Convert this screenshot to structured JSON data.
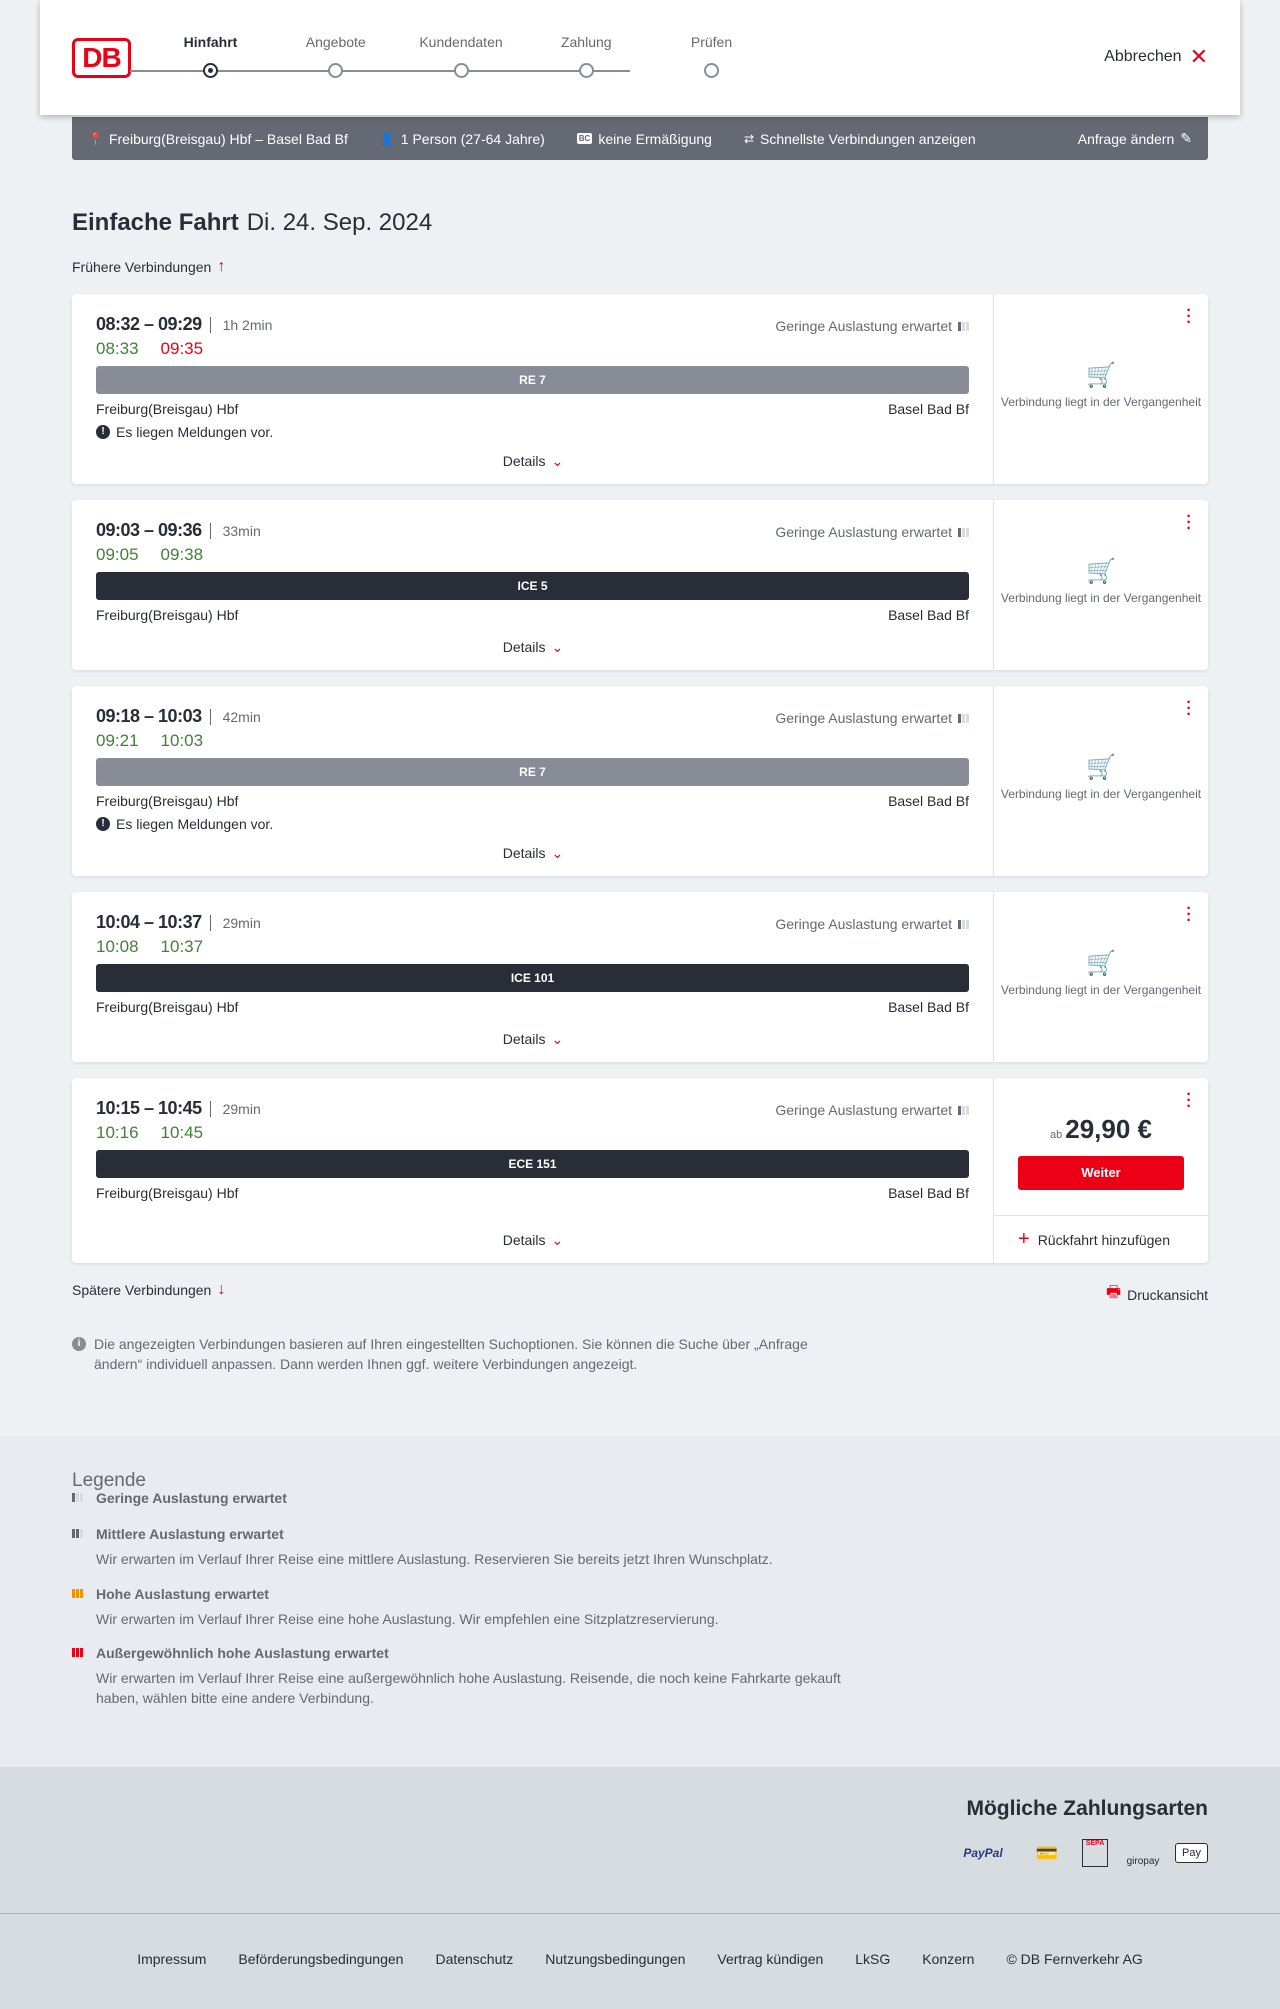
{
  "header": {
    "logo": "DB",
    "steps": [
      "Hinfahrt",
      "Angebote",
      "Kundendaten",
      "Zahlung",
      "Prüfen"
    ],
    "active_step": 0,
    "cancel": "Abbrechen"
  },
  "summary": {
    "route": "Freiburg(Breisgau) Hbf – Basel Bad Bf",
    "passengers": "1 Person (27-64 Jahre)",
    "bc_badge": "BC",
    "discount": "keine Ermäßigung",
    "option": "Schnellste Verbindungen anzeigen",
    "change": "Anfrage ändern"
  },
  "title": {
    "type": "Einfache Fahrt",
    "date": "Di. 24. Sep. 2024"
  },
  "earlier": "Frühere Verbindungen",
  "later": "Spätere Verbindungen",
  "print": "Druckansicht",
  "details_label": "Details",
  "occupancy_label": "Geringe Auslastung erwartet",
  "past_label": "Verbindung liegt in der Vergangenheit",
  "message_label": "Es liegen Meldungen vor.",
  "colors": {
    "accent": "#ec0016",
    "ontime": "#408335",
    "delay": "#ec0016",
    "regional": "#878c96",
    "longdistance": "#282d37"
  },
  "connections": [
    {
      "times": "08:32 – 09:29",
      "duration": "1h 2min",
      "rt_dep": "08:33",
      "rt_arr": "09:35",
      "rt_arr_late": true,
      "train": "RE 7",
      "regional": true,
      "from": "Freiburg(Breisgau) Hbf",
      "to": "Basel Bad Bf",
      "message": true,
      "past": true
    },
    {
      "times": "09:03 – 09:36",
      "duration": "33min",
      "rt_dep": "09:05",
      "rt_arr": "09:38",
      "rt_arr_late": false,
      "train": "ICE 5",
      "regional": false,
      "from": "Freiburg(Breisgau) Hbf",
      "to": "Basel Bad Bf",
      "message": false,
      "past": true
    },
    {
      "times": "09:18 – 10:03",
      "duration": "42min",
      "rt_dep": "09:21",
      "rt_arr": "10:03",
      "rt_arr_late": false,
      "train": "RE 7",
      "regional": true,
      "from": "Freiburg(Breisgau) Hbf",
      "to": "Basel Bad Bf",
      "message": true,
      "past": true
    },
    {
      "times": "10:04 – 10:37",
      "duration": "29min",
      "rt_dep": "10:08",
      "rt_arr": "10:37",
      "rt_arr_late": false,
      "train": "ICE 101",
      "regional": false,
      "from": "Freiburg(Breisgau) Hbf",
      "to": "Basel Bad Bf",
      "message": false,
      "past": true
    },
    {
      "times": "10:15 – 10:45",
      "duration": "29min",
      "rt_dep": "10:16",
      "rt_arr": "10:45",
      "rt_arr_late": false,
      "train": "ECE 151",
      "regional": false,
      "from": "Freiburg(Breisgau) Hbf",
      "to": "Basel Bad Bf",
      "message": false,
      "past": false,
      "price_prefix": "ab",
      "price": "29,90 €",
      "button": "Weiter",
      "return": "Rückfahrt hinzufügen"
    }
  ],
  "info": "Die angezeigten Verbindungen basieren auf Ihren eingestellten Suchoptionen. Sie können die Suche über „Anfrage ändern“ individuell anpassen. Dann werden Ihnen ggf. weitere Verbindungen angezeigt.",
  "legend": {
    "title": "Legende",
    "items": [
      {
        "title": "Geringe Auslastung erwartet",
        "text": "",
        "level": 1,
        "color": "#646973"
      },
      {
        "title": "Mittlere Auslastung erwartet",
        "text": "Wir erwarten im Verlauf Ihrer Reise eine mittlere Auslastung. Reservieren Sie bereits jetzt Ihren Wunschplatz.",
        "level": 2,
        "color": "#646973"
      },
      {
        "title": "Hohe Auslastung erwartet",
        "text": "Wir erwarten im Verlauf Ihrer Reise eine hohe Auslastung. Wir empfehlen eine Sitzplatzreservierung.",
        "level": 3,
        "color": "#f39200"
      },
      {
        "title": "Außergewöhnlich hohe Auslastung erwartet",
        "text": "Wir erwarten im Verlauf Ihrer Reise eine außergewöhnlich hohe Auslastung. Reisende, die noch keine Fahrkarte gekauft haben, wählen bitte eine andere Verbindung.",
        "level": 4,
        "color": "#ec0016"
      }
    ]
  },
  "payment": {
    "title": "Mögliche Zahlungsarten",
    "methods": [
      "PayPal",
      "Kreditkarte",
      "SEPA",
      "giropay",
      "Pay"
    ]
  },
  "footer": [
    "Impressum",
    "Beförderungsbedingungen",
    "Datenschutz",
    "Nutzungsbedingungen",
    "Vertrag kündigen",
    "LkSG",
    "Konzern",
    "© DB Fernverkehr AG"
  ]
}
